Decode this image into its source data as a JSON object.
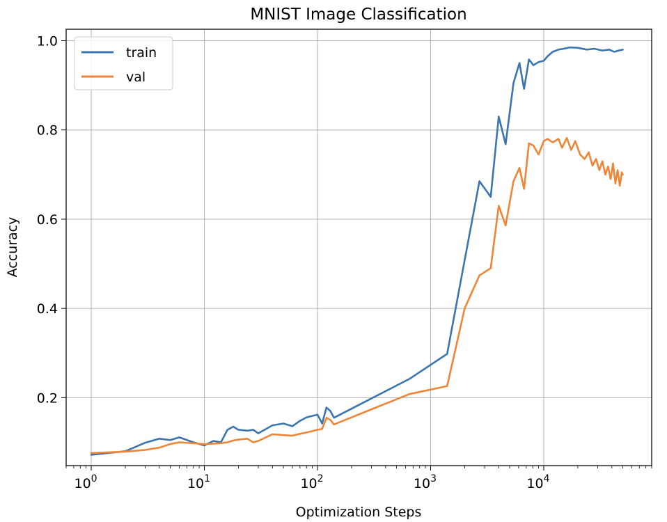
{
  "chart_data": {
    "type": "line",
    "title": "MNIST Image Classification",
    "xlabel": "Optimization Steps",
    "ylabel": "Accuracy",
    "xscale": "log",
    "xlim": [
      0.6,
      90000
    ],
    "ylim": [
      0.0477,
      1.0257
    ],
    "grid": true,
    "legend_position": "top-left",
    "x_ticks": [
      {
        "value": 1,
        "base": "10",
        "exp": "0"
      },
      {
        "value": 10,
        "base": "10",
        "exp": "1"
      },
      {
        "value": 100,
        "base": "10",
        "exp": "2"
      },
      {
        "value": 1000,
        "base": "10",
        "exp": "3"
      },
      {
        "value": 10000,
        "base": "10",
        "exp": "4"
      }
    ],
    "y_ticks": [
      {
        "value": 0.2,
        "label": "0.2"
      },
      {
        "value": 0.4,
        "label": "0.4"
      },
      {
        "value": 0.6,
        "label": "0.6"
      },
      {
        "value": 0.8,
        "label": "0.8"
      },
      {
        "value": 1.0,
        "label": "1.0"
      }
    ],
    "series": [
      {
        "name": "train",
        "color": "#3a75b0",
        "x": [
          1,
          2,
          3,
          4,
          5,
          6,
          8,
          10,
          12,
          14,
          16,
          18,
          20,
          24,
          27,
          30,
          40,
          50,
          60,
          70,
          80,
          100,
          110,
          120,
          130,
          140,
          650,
          1400,
          2700,
          3400,
          4000,
          4600,
          5400,
          6100,
          6700,
          7400,
          8100,
          9000,
          10000,
          10800,
          12000,
          13500,
          15000,
          17000,
          20000,
          24000,
          28000,
          33000,
          38000,
          42000,
          46000,
          50000
        ],
        "y": [
          0.072,
          0.08,
          0.099,
          0.108,
          0.105,
          0.111,
          0.1,
          0.093,
          0.103,
          0.1,
          0.128,
          0.135,
          0.128,
          0.126,
          0.128,
          0.12,
          0.138,
          0.142,
          0.136,
          0.148,
          0.156,
          0.162,
          0.142,
          0.178,
          0.17,
          0.155,
          0.242,
          0.298,
          0.685,
          0.65,
          0.83,
          0.768,
          0.905,
          0.95,
          0.892,
          0.958,
          0.945,
          0.952,
          0.955,
          0.965,
          0.975,
          0.98,
          0.982,
          0.985,
          0.984,
          0.98,
          0.982,
          0.978,
          0.98,
          0.975,
          0.978,
          0.98
        ]
      },
      {
        "name": "val",
        "color": "#ef8536",
        "x": [
          1,
          2,
          3,
          4,
          5,
          6,
          8,
          10,
          12,
          14,
          16,
          18,
          20,
          24,
          27,
          30,
          40,
          50,
          60,
          70,
          80,
          100,
          110,
          120,
          130,
          140,
          650,
          1400,
          2000,
          2700,
          3400,
          4000,
          4600,
          5400,
          6100,
          6700,
          7400,
          8100,
          9000,
          10000,
          10800,
          12000,
          13500,
          14500,
          16000,
          17500,
          19000,
          21000,
          23000,
          25000,
          27000,
          29000,
          31000,
          33000,
          35000,
          37000,
          39000,
          41000,
          43000,
          45000,
          47000,
          49000,
          50000
        ],
        "y": [
          0.076,
          0.079,
          0.083,
          0.088,
          0.096,
          0.1,
          0.098,
          0.096,
          0.097,
          0.098,
          0.1,
          0.104,
          0.106,
          0.108,
          0.1,
          0.103,
          0.118,
          0.116,
          0.115,
          0.119,
          0.122,
          0.128,
          0.13,
          0.155,
          0.15,
          0.14,
          0.208,
          0.226,
          0.4,
          0.474,
          0.49,
          0.63,
          0.586,
          0.685,
          0.715,
          0.668,
          0.77,
          0.765,
          0.745,
          0.775,
          0.78,
          0.772,
          0.78,
          0.76,
          0.782,
          0.755,
          0.775,
          0.745,
          0.735,
          0.75,
          0.72,
          0.735,
          0.71,
          0.73,
          0.7,
          0.718,
          0.69,
          0.725,
          0.68,
          0.71,
          0.675,
          0.705,
          0.7
        ]
      }
    ]
  }
}
